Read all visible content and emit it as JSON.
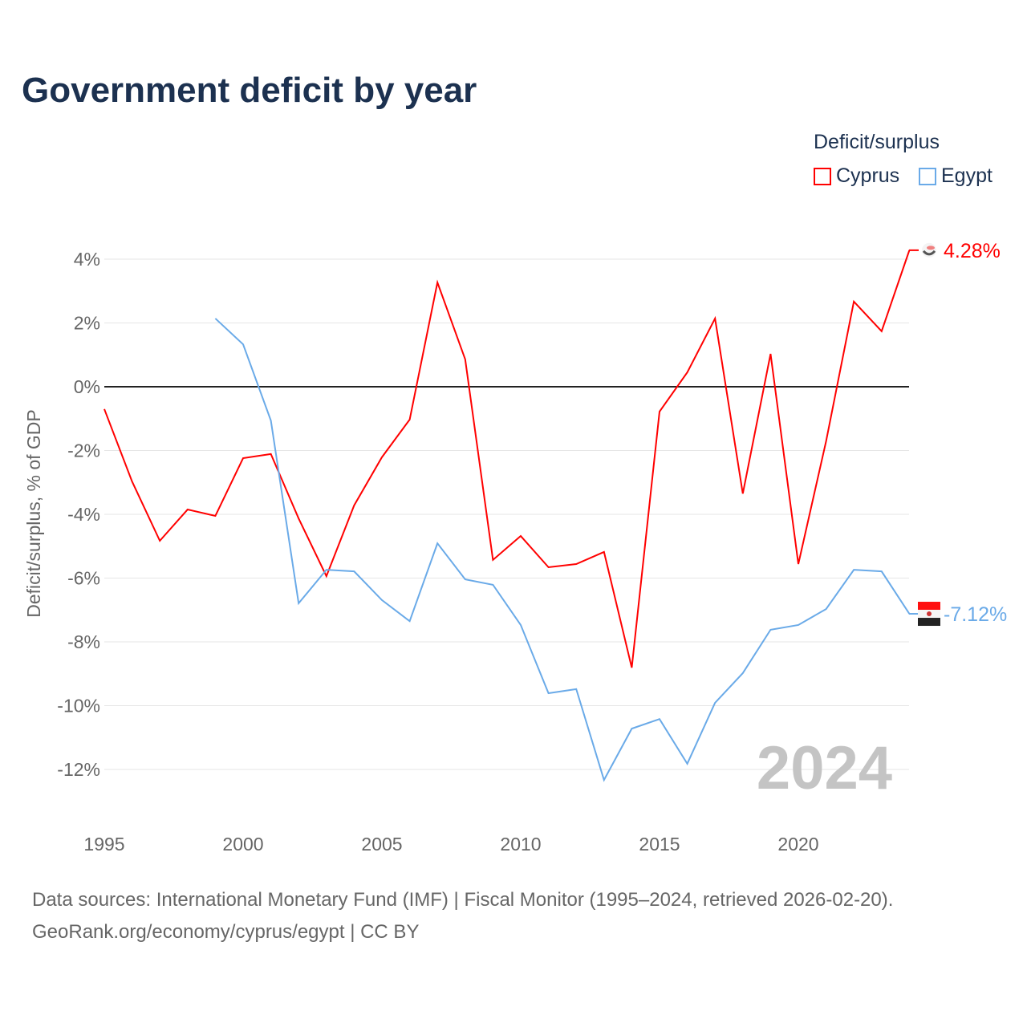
{
  "title": "Government deficit by year",
  "legend": {
    "title": "Deficit/surplus",
    "items": [
      "Cyprus",
      "Egypt"
    ]
  },
  "sources": [
    "Data sources: International Monetary Fund (IMF) | Fiscal Monitor (1995–2024, retrieved 2026-02-20).",
    "GeoRank.org/economy/cyprus/egypt | CC BY"
  ],
  "chart_data": {
    "type": "line",
    "title": "Government deficit by year",
    "xlabel": "",
    "ylabel": "Deficit/surplus, % of GDP",
    "xlim": [
      1995,
      2024
    ],
    "ylim": [
      -13,
      4.5
    ],
    "xticks": [
      1995,
      2000,
      2005,
      2010,
      2015,
      2020
    ],
    "yticks": [
      4,
      2,
      0,
      -2,
      -4,
      -6,
      -8,
      -10,
      -12
    ],
    "ytick_labels": [
      "4%",
      "2%",
      "0%",
      "-2%",
      "-4%",
      "-6%",
      "-8%",
      "-10%",
      "-12%"
    ],
    "watermark": "2024",
    "series": [
      {
        "name": "Cyprus",
        "color": "#ff0000",
        "end_label": "4.28%",
        "x": [
          1995,
          1996,
          1997,
          1998,
          1999,
          2000,
          2001,
          2002,
          2003,
          2004,
          2005,
          2006,
          2007,
          2008,
          2009,
          2010,
          2011,
          2012,
          2013,
          2014,
          2015,
          2016,
          2017,
          2018,
          2019,
          2020,
          2021,
          2022,
          2023,
          2024
        ],
        "values": [
          -0.7,
          -2.97,
          -4.83,
          -3.85,
          -4.05,
          -2.24,
          -2.11,
          -4.13,
          -5.94,
          -3.72,
          -2.21,
          -1.03,
          3.27,
          0.86,
          -5.43,
          -4.68,
          -5.66,
          -5.56,
          -5.18,
          -8.81,
          -0.78,
          0.45,
          2.14,
          -3.35,
          1.03,
          -5.56,
          -1.71,
          2.67,
          1.74,
          4.28
        ]
      },
      {
        "name": "Egypt",
        "color": "#6aaae8",
        "end_label": "-7.12%",
        "x": [
          1999,
          2000,
          2001,
          2002,
          2003,
          2004,
          2005,
          2006,
          2007,
          2008,
          2009,
          2010,
          2011,
          2012,
          2013,
          2014,
          2015,
          2016,
          2017,
          2018,
          2019,
          2020,
          2021,
          2022,
          2023,
          2024
        ],
        "values": [
          2.14,
          1.33,
          -1.06,
          -6.79,
          -5.74,
          -5.79,
          -6.69,
          -7.35,
          -4.91,
          -6.04,
          -6.21,
          -7.47,
          -9.61,
          -9.48,
          -12.33,
          -10.72,
          -10.42,
          -11.82,
          -9.91,
          -8.98,
          -7.62,
          -7.47,
          -6.97,
          -5.74,
          -5.79,
          -7.12
        ]
      }
    ]
  }
}
